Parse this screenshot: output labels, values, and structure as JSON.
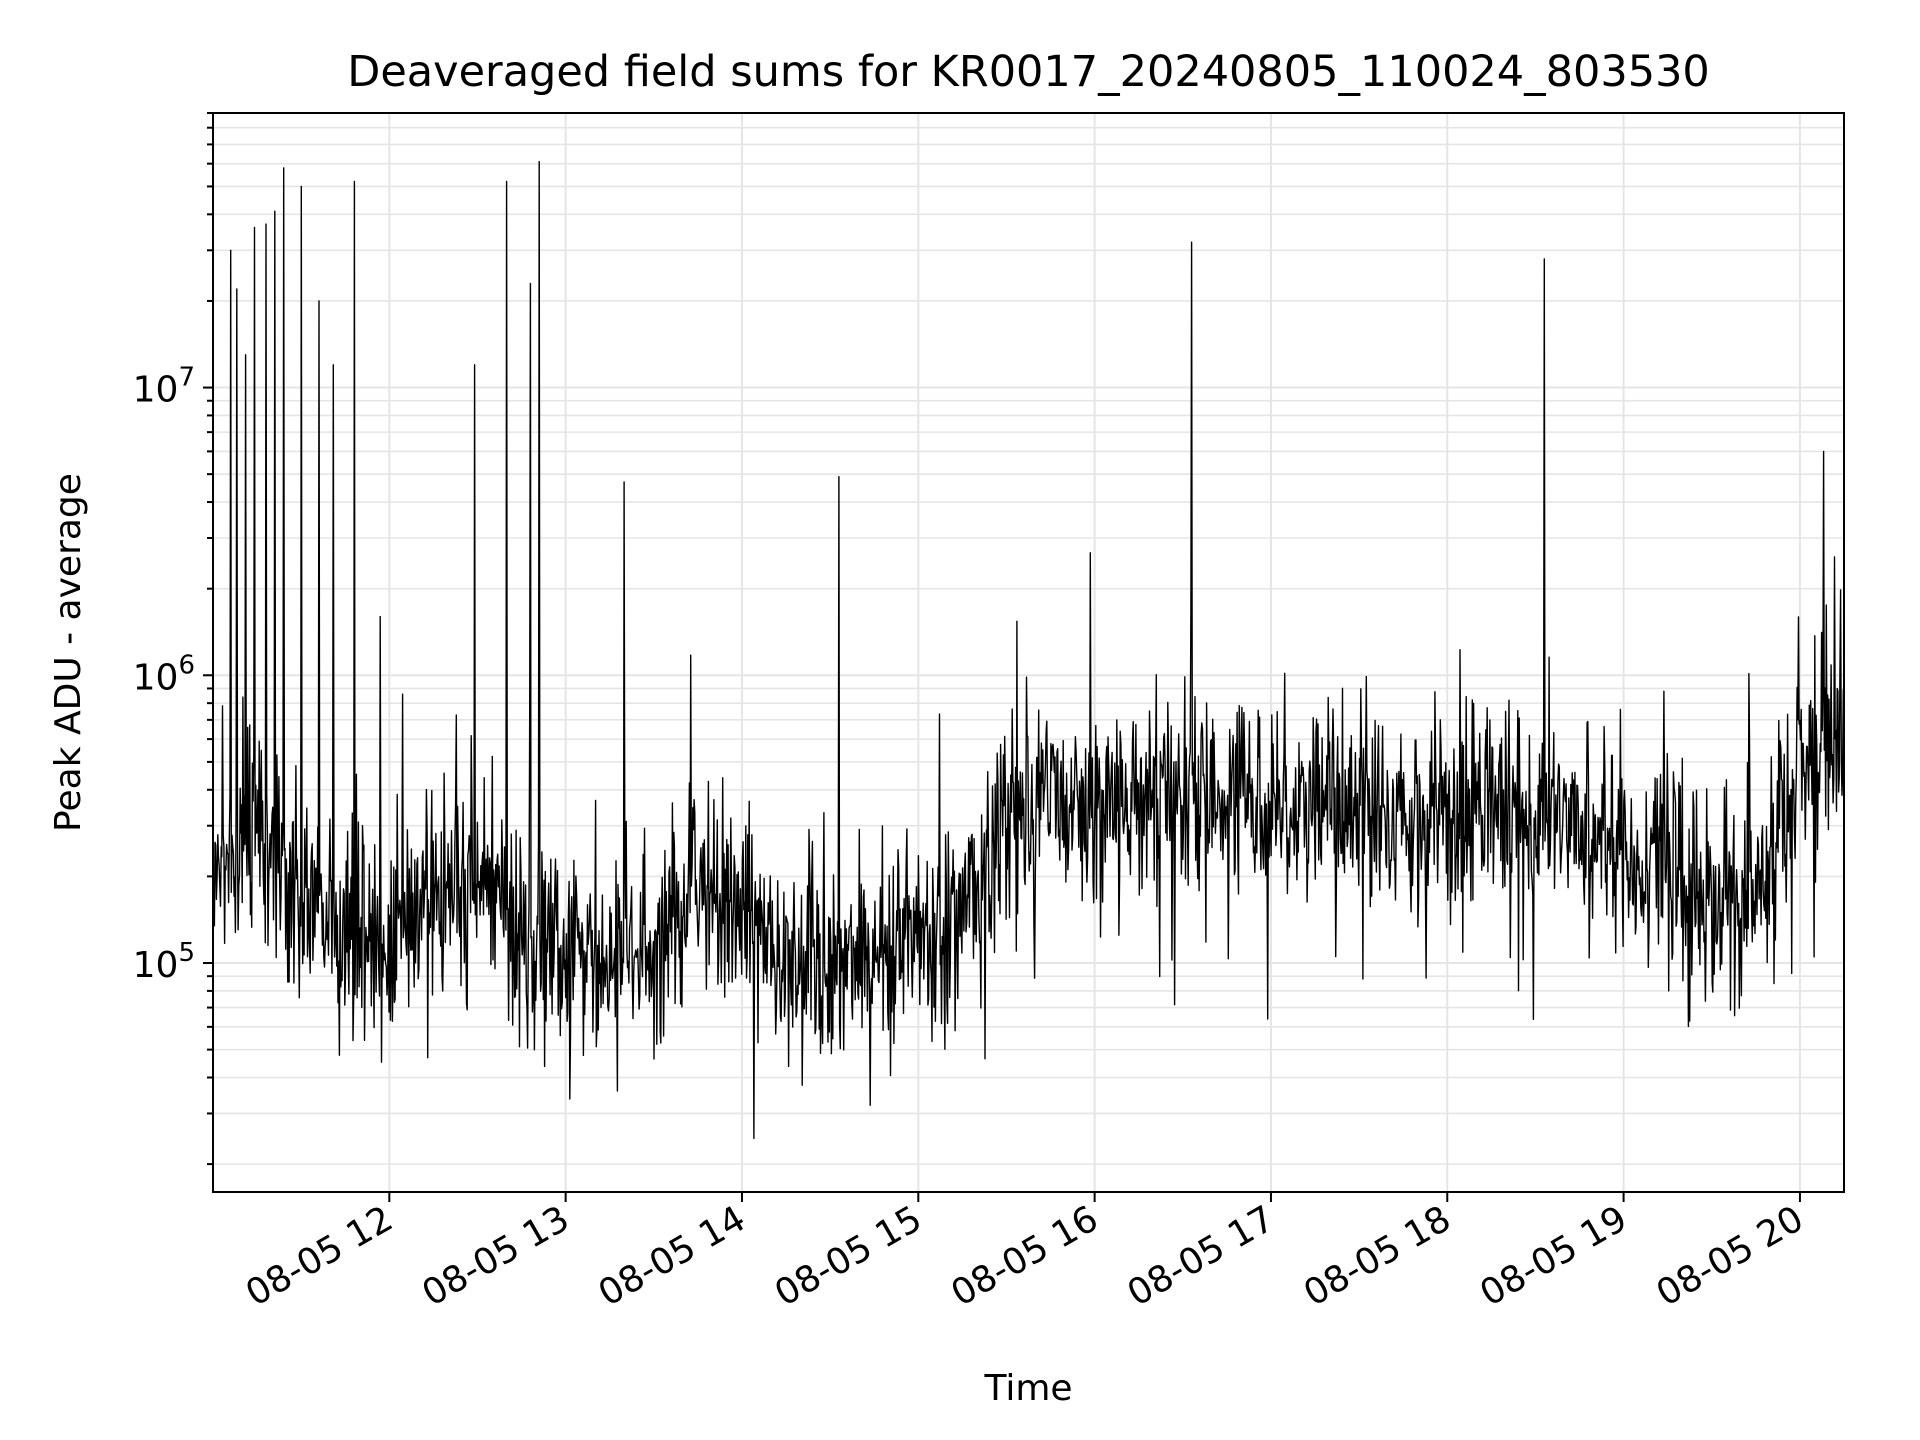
{
  "chart_data": {
    "type": "line",
    "title": "Deaveraged field sums for KR0017_20240805_110024_803530",
    "xlabel": "Time",
    "ylabel": "Peak ADU - average",
    "yscale": "log",
    "xlim": [
      "2024-08-05 11:00",
      "2024-08-05 20:15"
    ],
    "ylim": [
      16000,
      90000000
    ],
    "grid": true,
    "grid_color": "#e5e5e5",
    "line_color": "#000000",
    "x_ticks": [
      {
        "value": "2024-08-05 12:00",
        "label": "08-05 12"
      },
      {
        "value": "2024-08-05 13:00",
        "label": "08-05 13"
      },
      {
        "value": "2024-08-05 14:00",
        "label": "08-05 14"
      },
      {
        "value": "2024-08-05 15:00",
        "label": "08-05 15"
      },
      {
        "value": "2024-08-05 16:00",
        "label": "08-05 16"
      },
      {
        "value": "2024-08-05 17:00",
        "label": "08-05 17"
      },
      {
        "value": "2024-08-05 18:00",
        "label": "08-05 18"
      },
      {
        "value": "2024-08-05 19:00",
        "label": "08-05 19"
      },
      {
        "value": "2024-08-05 20:00",
        "label": "08-05 20"
      }
    ],
    "y_ticks": [
      {
        "value": 100000,
        "base": "10",
        "exp": "5"
      },
      {
        "value": 1000000,
        "base": "10",
        "exp": "6"
      },
      {
        "value": 10000000,
        "base": "10",
        "exp": "7"
      }
    ],
    "series": [
      {
        "values": [
          {
            "t": "2024-08-05 11:00",
            "y": 220000
          },
          {
            "t": "2024-08-05 11:15",
            "y": 260000
          },
          {
            "t": "2024-08-05 11:30",
            "y": 180000
          },
          {
            "t": "2024-08-05 11:45",
            "y": 120000
          },
          {
            "t": "2024-08-05 12:00",
            "y": 110000
          },
          {
            "t": "2024-08-05 12:15",
            "y": 180000
          },
          {
            "t": "2024-08-05 12:30",
            "y": 190000
          },
          {
            "t": "2024-08-05 12:45",
            "y": 130000
          },
          {
            "t": "2024-08-05 13:00",
            "y": 100000
          },
          {
            "t": "2024-08-05 13:15",
            "y": 95000
          },
          {
            "t": "2024-08-05 13:30",
            "y": 110000
          },
          {
            "t": "2024-08-05 13:45",
            "y": 200000
          },
          {
            "t": "2024-08-05 14:00",
            "y": 150000
          },
          {
            "t": "2024-08-05 14:15",
            "y": 110000
          },
          {
            "t": "2024-08-05 14:30",
            "y": 100000
          },
          {
            "t": "2024-08-05 14:45",
            "y": 110000
          },
          {
            "t": "2024-08-05 15:00",
            "y": 130000
          },
          {
            "t": "2024-08-05 15:15",
            "y": 150000
          },
          {
            "t": "2024-08-05 15:30",
            "y": 300000
          },
          {
            "t": "2024-08-05 15:45",
            "y": 350000
          },
          {
            "t": "2024-08-05 16:00",
            "y": 380000
          },
          {
            "t": "2024-08-05 16:15",
            "y": 380000
          },
          {
            "t": "2024-08-05 16:30",
            "y": 390000
          },
          {
            "t": "2024-08-05 16:45",
            "y": 380000
          },
          {
            "t": "2024-08-05 17:00",
            "y": 380000
          },
          {
            "t": "2024-08-05 17:15",
            "y": 350000
          },
          {
            "t": "2024-08-05 17:30",
            "y": 340000
          },
          {
            "t": "2024-08-05 17:45",
            "y": 330000
          },
          {
            "t": "2024-08-05 18:00",
            "y": 330000
          },
          {
            "t": "2024-08-05 18:15",
            "y": 340000
          },
          {
            "t": "2024-08-05 18:30",
            "y": 330000
          },
          {
            "t": "2024-08-05 18:45",
            "y": 290000
          },
          {
            "t": "2024-08-05 19:00",
            "y": 260000
          },
          {
            "t": "2024-08-05 19:15",
            "y": 220000
          },
          {
            "t": "2024-08-05 19:30",
            "y": 160000
          },
          {
            "t": "2024-08-05 19:45",
            "y": 170000
          },
          {
            "t": "2024-08-05 20:00",
            "y": 500000
          },
          {
            "t": "2024-08-05 20:15",
            "y": 550000
          }
        ]
      }
    ],
    "spikes": [
      {
        "t": "2024-08-05 11:06",
        "y": 30000000
      },
      {
        "t": "2024-08-05 11:08",
        "y": 22000000
      },
      {
        "t": "2024-08-05 11:11",
        "y": 13000000
      },
      {
        "t": "2024-08-05 11:14",
        "y": 36000000
      },
      {
        "t": "2024-08-05 11:18",
        "y": 37000000
      },
      {
        "t": "2024-08-05 11:21",
        "y": 41000000
      },
      {
        "t": "2024-08-05 11:24",
        "y": 58000000
      },
      {
        "t": "2024-08-05 11:30",
        "y": 50000000
      },
      {
        "t": "2024-08-05 11:36",
        "y": 20000000
      },
      {
        "t": "2024-08-05 11:41",
        "y": 12000000
      },
      {
        "t": "2024-08-05 11:48",
        "y": 52000000
      },
      {
        "t": "2024-08-05 11:57",
        "y": 1600000
      },
      {
        "t": "2024-08-05 12:29",
        "y": 12000000
      },
      {
        "t": "2024-08-05 12:40",
        "y": 52000000
      },
      {
        "t": "2024-08-05 12:48",
        "y": 23000000
      },
      {
        "t": "2024-08-05 12:51",
        "y": 61000000
      },
      {
        "t": "2024-08-05 13:20",
        "y": 4700000
      },
      {
        "t": "2024-08-05 14:33",
        "y": 4900000
      },
      {
        "t": "2024-08-05 16:33",
        "y": 32000000
      },
      {
        "t": "2024-08-05 18:33",
        "y": 28000000
      },
      {
        "t": "2024-08-05 20:08",
        "y": 6000000
      }
    ]
  }
}
